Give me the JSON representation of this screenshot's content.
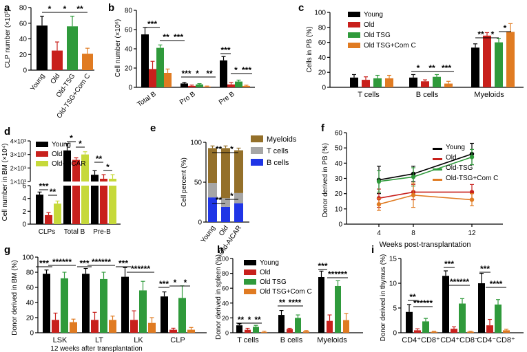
{
  "colors": {
    "young": "#000000",
    "old": "#c8201c",
    "tsg": "#2f9a3b",
    "comc": "#e07b22",
    "aicar": "#c6d93a",
    "myeloid": "#94702a",
    "tcell": "#a6a6a6",
    "bcell": "#1f35e6"
  },
  "chart_data": [
    {
      "panel": "a",
      "type": "bar",
      "ylabel": "CLP number (×10³)",
      "categories": [
        "Young",
        "Old",
        "Old-TSG",
        "Old-TSG+Com C"
      ],
      "values": [
        57,
        25,
        56,
        21
      ],
      "errors": [
        12,
        11,
        13,
        7
      ],
      "colors": [
        "#000000",
        "#c8201c",
        "#2f9a3b",
        "#e07b22"
      ],
      "ylim": [
        0,
        80
      ],
      "yticks": [
        "0",
        "20",
        "40",
        "60",
        "80"
      ],
      "sig": [
        "*",
        "*",
        "**"
      ]
    },
    {
      "panel": "b",
      "type": "bar",
      "ylabel": "Cell number (×10⁶)",
      "categories": [
        "Total B",
        "Pro B",
        "Pre B"
      ],
      "series": [
        {
          "values": [
            55,
            4,
            28
          ],
          "errors": [
            7,
            1,
            4
          ]
        },
        {
          "values": [
            19,
            1.5,
            3
          ],
          "errors": [
            8,
            0.8,
            2
          ]
        },
        {
          "values": [
            41,
            3,
            6
          ],
          "errors": [
            3,
            0.8,
            1.5
          ]
        },
        {
          "values": [
            15,
            0.8,
            1.5
          ],
          "errors": [
            4,
            0.5,
            0.7
          ]
        }
      ],
      "ylim": [
        0,
        80
      ],
      "yticks": [
        "0",
        "20",
        "40",
        "60",
        "80"
      ],
      "sig": [
        "***",
        "**",
        "***",
        "***",
        "*",
        "**",
        "***",
        "*",
        "***"
      ]
    },
    {
      "panel": "c",
      "type": "bar",
      "ylabel": "Cells in PB (%)",
      "categories": [
        "T cells",
        "B cells",
        "Myeloids"
      ],
      "series": [
        {
          "name": "Young",
          "values": [
            13,
            13,
            53
          ],
          "errors": [
            4,
            4,
            5
          ]
        },
        {
          "name": "Old",
          "values": [
            10,
            8,
            69
          ],
          "errors": [
            4,
            2,
            4
          ]
        },
        {
          "name": "Old TSG",
          "values": [
            12,
            14,
            60
          ],
          "errors": [
            4,
            3,
            5
          ]
        },
        {
          "name": "Old TSG+Com C",
          "values": [
            12,
            5,
            74
          ],
          "errors": [
            4,
            3,
            11
          ]
        }
      ],
      "ylim": [
        0,
        100
      ],
      "yticks": [
        "0",
        "20",
        "40",
        "60",
        "80",
        "100"
      ],
      "sig": [
        "*",
        "**",
        "***",
        "**",
        "*",
        "*"
      ]
    },
    {
      "panel": "d",
      "type": "bar",
      "ylabel": "Cell number in BM (×10⁴)",
      "categories": [
        "CLPs",
        "Total B",
        "Pre-B"
      ],
      "series": [
        {
          "name": "Young",
          "values": [
            4.6,
            3300,
            1500
          ],
          "errors": [
            0.4,
            500,
            300
          ]
        },
        {
          "name": "Old",
          "values": [
            1.4,
            2600,
            400
          ],
          "errors": [
            0.4,
            150,
            80
          ]
        },
        {
          "name": "Old-AICAR",
          "values": [
            3.2,
            3000,
            850
          ],
          "errors": [
            0.4,
            200,
            200
          ]
        }
      ],
      "lower_yticks": [
        "0",
        "2",
        "4",
        "6"
      ],
      "upper_yticks": [
        "1×10³",
        "2×10³",
        "3×10³",
        "4×10³"
      ],
      "sig": [
        "***",
        "**",
        "*",
        "*",
        "**",
        "*"
      ]
    },
    {
      "panel": "e",
      "type": "bar",
      "ylabel": "Cell percent (%)",
      "categories": [
        "Young",
        "Old",
        "Old-AICAR"
      ],
      "series": [
        {
          "name": "B cells",
          "values": [
            34,
            21,
            26
          ]
        },
        {
          "name": "T cells",
          "values": [
            20,
            12,
            14
          ]
        },
        {
          "name": "Myeloids",
          "values": [
            48,
            69,
            59
          ]
        }
      ],
      "ylim": [
        0,
        100
      ],
      "yticks": [
        "0",
        "50",
        "100"
      ],
      "sig": [
        "**",
        "*",
        "**",
        "*"
      ]
    },
    {
      "panel": "f",
      "type": "line",
      "ylabel": "Donor derived in PB (%)",
      "xlabel": "Weeks post-transplantation",
      "x": [
        4,
        8,
        12
      ],
      "series": [
        {
          "name": "Young",
          "values": [
            29,
            33,
            46
          ],
          "errors": [
            9,
            5,
            7
          ]
        },
        {
          "name": "Old",
          "values": [
            17,
            21,
            21
          ],
          "errors": [
            6,
            5,
            5
          ]
        },
        {
          "name": "Old-TSG",
          "values": [
            28,
            31,
            44
          ],
          "errors": [
            7,
            6,
            5
          ]
        },
        {
          "name": "Old-TSG+Com C",
          "values": [
            13,
            19,
            16
          ],
          "errors": [
            4,
            8,
            4
          ]
        }
      ],
      "ylim": [
        0,
        60
      ],
      "yticks": [
        "0",
        "10",
        "20",
        "30",
        "40",
        "50",
        "60"
      ],
      "xticks": [
        "4",
        "8",
        "12"
      ]
    },
    {
      "panel": "g",
      "type": "bar",
      "ylabel": "Donor derived in BM (%)",
      "xlabel": "12 weeks after transplantation",
      "categories": [
        "LSK",
        "LT",
        "LK",
        "CLP"
      ],
      "series": [
        {
          "values": [
            78,
            78,
            74,
            48
          ],
          "errors": [
            5,
            7,
            12,
            6
          ]
        },
        {
          "values": [
            17,
            17,
            17,
            4
          ],
          "errors": [
            9,
            10,
            12,
            2
          ]
        },
        {
          "values": [
            72,
            71,
            56,
            46
          ],
          "errors": [
            8,
            9,
            12,
            16
          ]
        },
        {
          "values": [
            14,
            17,
            13,
            4
          ],
          "errors": [
            4,
            5,
            7,
            3
          ]
        }
      ],
      "ylim": [
        0,
        100
      ],
      "yticks": [
        "0",
        "20",
        "40",
        "60",
        "80",
        "100"
      ],
      "sig": [
        "***",
        "******",
        "***",
        "******",
        "***",
        "******",
        "***",
        "*",
        "*"
      ]
    },
    {
      "panel": "h",
      "type": "bar",
      "ylabel": "Donor derived in spleen (%)",
      "categories": [
        "T cells",
        "B cells",
        "Myeloids"
      ],
      "series": [
        {
          "name": "Young",
          "values": [
            10,
            24,
            75
          ],
          "errors": [
            2,
            6,
            8
          ]
        },
        {
          "name": "Old",
          "values": [
            4,
            5,
            16
          ],
          "errors": [
            2,
            1,
            8
          ]
        },
        {
          "name": "Old TSG",
          "values": [
            8,
            20,
            63
          ],
          "errors": [
            2,
            4,
            7
          ]
        },
        {
          "name": "Old TSG+Com C",
          "values": [
            1,
            2,
            17
          ],
          "errors": [
            1,
            1,
            9
          ]
        }
      ],
      "ylim": [
        0,
        100
      ],
      "yticks": [
        "0",
        "20",
        "40",
        "60",
        "80",
        "100"
      ],
      "sig": [
        "**",
        "*",
        "**",
        "**",
        "****",
        "***",
        "******"
      ]
    },
    {
      "panel": "i",
      "type": "bar",
      "ylabel": "Donor derived in thymus (%)",
      "categories": [
        "CD4⁺CD8⁺",
        "CD4⁺CD8⁻",
        "CD4⁻CD8⁺"
      ],
      "series": [
        {
          "values": [
            4.2,
            11.5,
            10
          ],
          "errors": [
            1.5,
            1,
            2
          ]
        },
        {
          "values": [
            0.5,
            0.8,
            1.5
          ],
          "errors": [
            0.3,
            0.4,
            1.2
          ]
        },
        {
          "values": [
            2.3,
            5.9,
            5.7
          ],
          "errors": [
            0.6,
            1,
            1
          ]
        },
        {
          "values": [
            0.2,
            0.2,
            0.5
          ],
          "errors": [
            0.1,
            0.1,
            0.2
          ]
        }
      ],
      "ylim": [
        0,
        15
      ],
      "yticks": [
        "0",
        "5",
        "10",
        "15"
      ],
      "sig": [
        "**",
        "******",
        "***",
        "******",
        "***",
        "****"
      ]
    }
  ],
  "panel_letters": [
    "a",
    "b",
    "c",
    "d",
    "e",
    "f",
    "g",
    "h",
    "i"
  ]
}
